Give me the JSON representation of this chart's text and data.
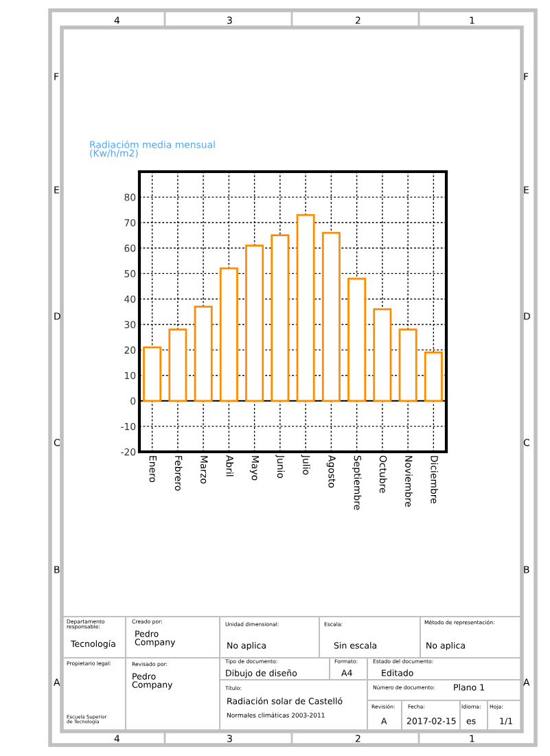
{
  "chart_data": {
    "type": "bar",
    "title": "Radiacióm media mensual\n(Kw/h/m2)",
    "categories": [
      "Enero",
      "Febrero",
      "Marzo",
      "Abril",
      "Mayo",
      "Junio",
      "Julio",
      "Agosto",
      "Septiembre",
      "Octubre",
      "Noviembre",
      "Diciembre"
    ],
    "series": [
      {
        "color": "#ff8c00",
        "values": [
          21,
          28,
          37,
          52,
          61,
          65,
          73,
          66,
          48,
          36,
          28,
          19
        ]
      }
    ],
    "ylim": [
      -20,
      90
    ],
    "yticks": [
      -20,
      -10,
      0,
      10,
      20,
      30,
      40,
      50,
      60,
      70,
      80
    ],
    "grid": true,
    "ref_lines": [
      {
        "axis": "y",
        "value": 0,
        "label": null,
        "color": "#000000"
      }
    ],
    "annotations": [
      "Departamento\nresponsable:",
      "Tecnología",
      "Creado por:",
      "Pedro\nCompany",
      "Unidad dimensional:",
      "No aplica",
      "Escala:",
      "Sin escala",
      "Método de representación:",
      "No aplica",
      "Propietario legal:",
      "Escuela Superior\nde Tecnología",
      "Revisado por:",
      "Pedro\nCompany",
      "Tipo de documento:",
      "Dibujo de diseño",
      "Formato:",
      "A4",
      "Estado del documento:",
      "Editado",
      "Título:",
      "Radiación solar de Castelló",
      "Normales climáticas 2003-2011",
      "Número de documento:",
      "Plano 1",
      "Revisión:",
      "Fecha:",
      "2017-02-15",
      "Idioma:",
      "Hoja:",
      "A",
      "es",
      "1/1",
      "4",
      "3",
      "2",
      "1",
      "4",
      "3",
      "2",
      "1",
      "F",
      "E",
      "D",
      "C",
      "B",
      "A",
      "F",
      "E",
      "D",
      "C",
      "B",
      "A"
    ]
  }
}
